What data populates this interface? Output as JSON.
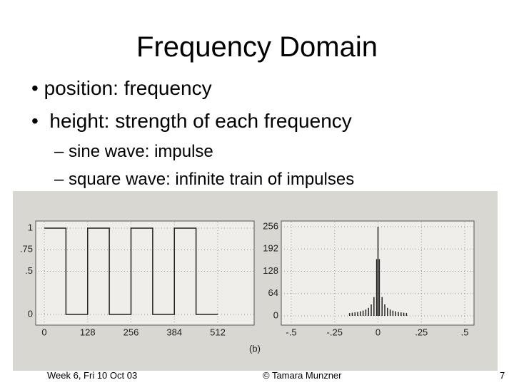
{
  "title": "Frequency Domain",
  "bullets": [
    "position: frequency",
    "height: strength of each frequency"
  ],
  "sub_bullets": [
    "sine wave: impulse",
    "square wave: infinite train of impulses"
  ],
  "figure": {
    "caption": "(b)",
    "panels": [
      {
        "type": "line",
        "x": [
          0,
          64,
          64,
          128,
          128,
          192,
          192,
          256,
          256,
          320,
          320,
          384,
          384,
          448,
          448,
          512
        ],
        "values": [
          1,
          1,
          0,
          0,
          1,
          1,
          0,
          0,
          1,
          1,
          0,
          0,
          1,
          1,
          0,
          0
        ],
        "xlim": [
          0,
          512
        ],
        "ylim": [
          0,
          1
        ],
        "xticks": [
          0,
          128,
          256,
          384,
          512
        ],
        "yticks": [
          {
            "value": 1,
            "label": "1"
          },
          {
            "value": 0.75,
            "label": ".75"
          },
          {
            "value": 0.5,
            "label": ".5"
          },
          {
            "value": 0,
            "label": "0"
          }
        ],
        "grid": true,
        "color": "#222222"
      },
      {
        "type": "impulse",
        "x": [
          -0.1640625,
          -0.1484375,
          -0.1328125,
          -0.1171875,
          -0.1015625,
          -0.0859375,
          -0.0703125,
          -0.0546875,
          -0.0390625,
          -0.0234375,
          -0.0078125,
          0,
          0.0078125,
          0.0234375,
          0.0390625,
          0.0546875,
          0.0703125,
          0.0859375,
          0.1015625,
          0.1171875,
          0.1328125,
          0.1484375,
          0.1640625
        ],
        "values": [
          8,
          9,
          10,
          11,
          13,
          15,
          18,
          23,
          33,
          54,
          163,
          256,
          163,
          54,
          33,
          23,
          18,
          15,
          13,
          11,
          10,
          9,
          8
        ],
        "xlim": [
          -0.5,
          0.5
        ],
        "ylim": [
          0,
          256
        ],
        "xticks": [
          {
            "value": -0.5,
            "label": "-.5"
          },
          {
            "value": -0.25,
            "label": "-.25"
          },
          0,
          {
            "value": 0.25,
            "label": ".25"
          },
          {
            "value": 0.5,
            "label": ".5"
          }
        ],
        "yticks": [
          0,
          64,
          128,
          192,
          256
        ],
        "grid": true,
        "color": "#222222"
      }
    ]
  },
  "footer": {
    "left": "Week 6, Fri 10 Oct 03",
    "center": "© Tamara Munzner",
    "right": "7"
  }
}
